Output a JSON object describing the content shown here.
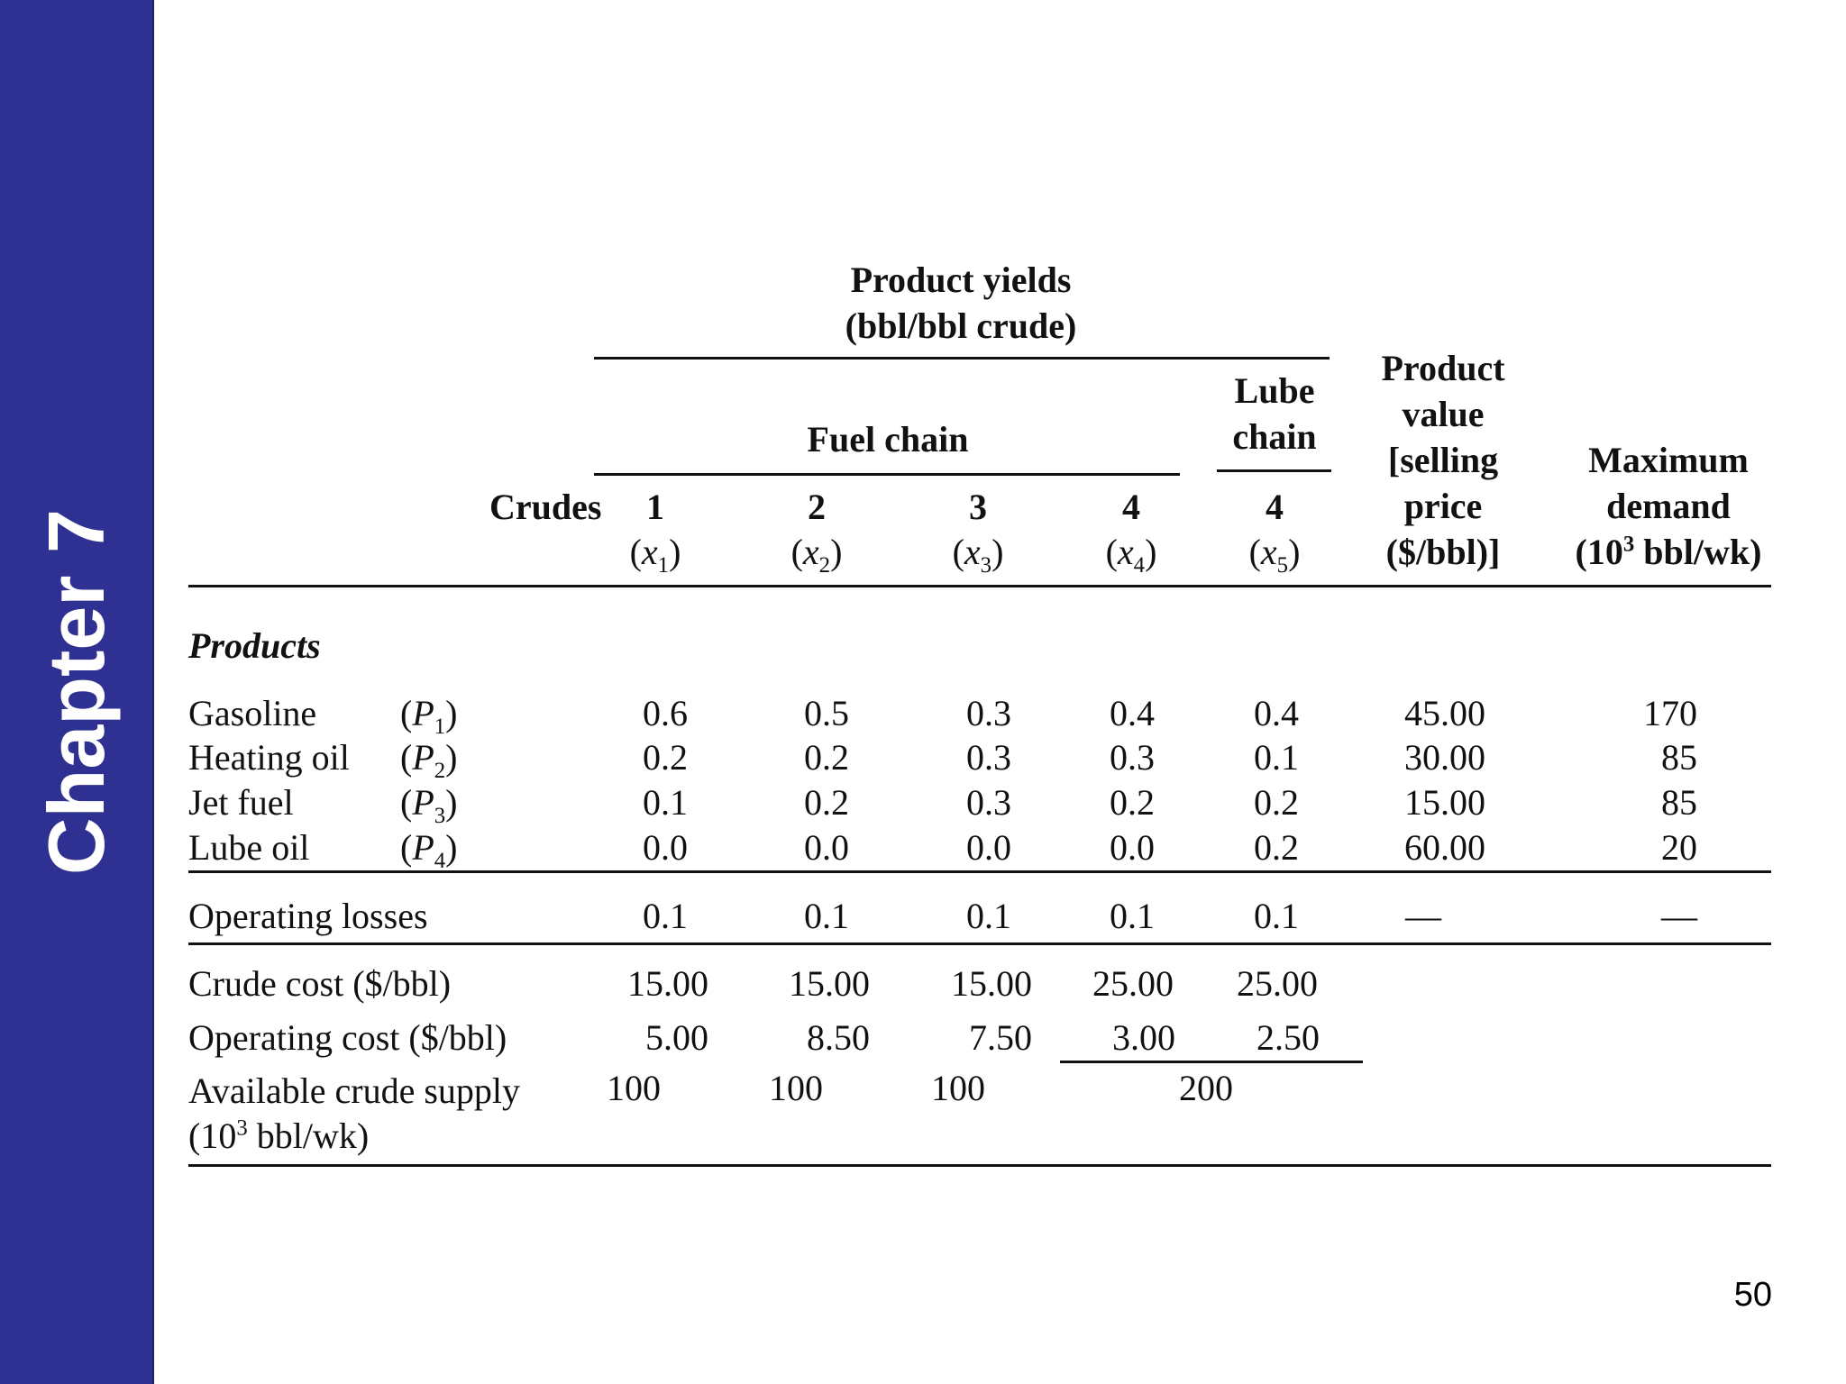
{
  "slide": {
    "chapter": "Chapter 7",
    "page_number": "50"
  },
  "table": {
    "header": {
      "product_yields_line1": "Product yields",
      "product_yields_line2": "(bbl/bbl crude)",
      "fuel_chain": "Fuel chain",
      "lube_chain_line1": "Lube",
      "lube_chain_line2": "chain",
      "crudes_label": "Crudes",
      "product_value_lines": [
        "Product",
        "value",
        "[selling",
        "price",
        "($/bbl)]"
      ],
      "max_demand_line1": "Maximum",
      "max_demand_line2": "demand",
      "max_demand_line3_pre": "(10",
      "max_demand_line3_sup": "3",
      "max_demand_line3_post": " bbl/wk)",
      "columns": [
        {
          "crude": "1",
          "var": "x",
          "sub": "1"
        },
        {
          "crude": "2",
          "var": "x",
          "sub": "2"
        },
        {
          "crude": "3",
          "var": "x",
          "sub": "3"
        },
        {
          "crude": "4",
          "var": "x",
          "sub": "4"
        },
        {
          "crude": "4",
          "var": "x",
          "sub": "5"
        }
      ]
    },
    "section_label": "Products",
    "products": [
      {
        "name": "Gasoline",
        "symbol": "P",
        "sub": "1",
        "yields": [
          "0.6",
          "0.5",
          "0.3",
          "0.4",
          "0.4"
        ],
        "value": "45.00",
        "demand": "170"
      },
      {
        "name": "Heating oil",
        "symbol": "P",
        "sub": "2",
        "yields": [
          "0.2",
          "0.2",
          "0.3",
          "0.3",
          "0.1"
        ],
        "value": "30.00",
        "demand": "85"
      },
      {
        "name": "Jet fuel",
        "symbol": "P",
        "sub": "3",
        "yields": [
          "0.1",
          "0.2",
          "0.3",
          "0.2",
          "0.2"
        ],
        "value": "15.00",
        "demand": "85"
      },
      {
        "name": "Lube oil",
        "symbol": "P",
        "sub": "4",
        "yields": [
          "0.0",
          "0.0",
          "0.0",
          "0.0",
          "0.2"
        ],
        "value": "60.00",
        "demand": "20"
      }
    ],
    "operating_losses": {
      "label": "Operating losses",
      "values": [
        "0.1",
        "0.1",
        "0.1",
        "0.1",
        "0.1"
      ],
      "value": "—",
      "demand": "—"
    },
    "crude_cost": {
      "label": "Crude cost ($/bbl)",
      "values": [
        "15.00",
        "15.00",
        "15.00",
        "25.00",
        "25.00"
      ]
    },
    "operating_cost": {
      "label": "Operating cost ($/bbl)",
      "values": [
        "5.00",
        "8.50",
        "7.50",
        "3.00",
        "2.50"
      ]
    },
    "supply": {
      "label_line1": "Available crude supply",
      "label_line2_pre": "(10",
      "label_line2_sup": "3",
      "label_line2_post": " bbl/wk)",
      "values": [
        "100",
        "100",
        "100"
      ],
      "shared_value": "200"
    }
  }
}
